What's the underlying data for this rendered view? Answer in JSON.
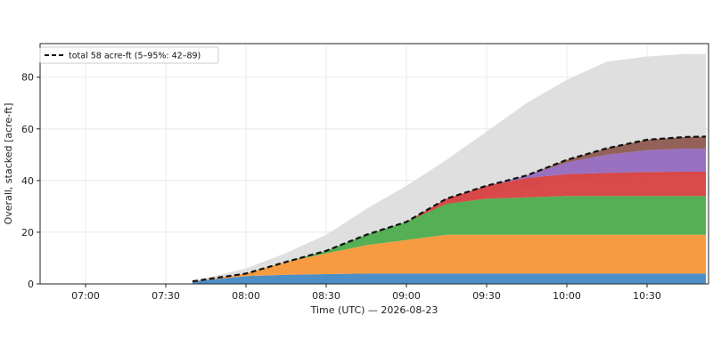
{
  "chart_data": {
    "type": "area",
    "stacked": true,
    "xlabel": "Time (UTC) — 2026-08-23",
    "ylabel": "Overall, stacked  [acre-ft]",
    "xlim": [
      "06:43",
      "10:53"
    ],
    "ylim": [
      0,
      93
    ],
    "x_ticks": [
      "07:00",
      "07:30",
      "08:00",
      "08:30",
      "09:00",
      "09:30",
      "10:00",
      "10:30"
    ],
    "y_ticks": [
      0,
      20,
      40,
      60,
      80
    ],
    "grid": true,
    "legend": {
      "placement": "top-left",
      "entries": [
        "total 58 acre-ft  (5–95%: 42–89)"
      ]
    },
    "x": [
      "07:40",
      "08:00",
      "08:15",
      "08:30",
      "08:45",
      "09:00",
      "09:15",
      "09:30",
      "09:45",
      "10:00",
      "10:15",
      "10:30",
      "10:45",
      "10:52"
    ],
    "band_95": [
      1,
      6,
      12,
      19,
      29,
      38,
      48,
      59,
      70,
      79,
      86,
      88,
      89,
      89
    ],
    "band_5": [
      1,
      4,
      8,
      12,
      18,
      24,
      30,
      34,
      37,
      40,
      41,
      42,
      42,
      42
    ],
    "series": [
      {
        "color": "#3d86c3",
        "values": [
          1,
          3,
          3.5,
          3.8,
          4,
          4,
          4,
          4,
          4,
          4,
          4,
          4,
          4,
          4
        ]
      },
      {
        "color": "#f59331",
        "values": [
          0,
          1,
          5,
          8,
          11,
          13,
          15,
          15,
          15,
          15,
          15,
          15,
          15,
          15
        ]
      },
      {
        "color": "#46a845",
        "values": [
          0,
          0,
          0,
          1,
          4,
          7,
          12,
          14,
          14.5,
          15,
          15,
          15,
          15,
          15
        ]
      },
      {
        "color": "#d63b3b",
        "values": [
          0,
          0,
          0,
          0,
          0,
          0,
          2,
          5,
          7.5,
          8.5,
          9,
          9.3,
          9.4,
          9.4
        ]
      },
      {
        "color": "#9467bd",
        "values": [
          0,
          0,
          0,
          0,
          0,
          0,
          0,
          0,
          1,
          4.5,
          7,
          8.5,
          9,
          9
        ]
      },
      {
        "color": "#8c564b",
        "values": [
          0,
          0,
          0,
          0,
          0,
          0,
          0,
          0,
          0,
          1,
          2.5,
          4,
          4.5,
          4.6
        ]
      }
    ],
    "total": {
      "values": [
        1,
        4,
        8.5,
        12.8,
        19,
        24,
        33,
        38,
        42,
        48,
        52.5,
        55.8,
        56.9,
        57
      ]
    },
    "colors": {
      "band": "#dcdcdc",
      "total_line": "#111111",
      "grid": "#e6e6e6"
    }
  }
}
